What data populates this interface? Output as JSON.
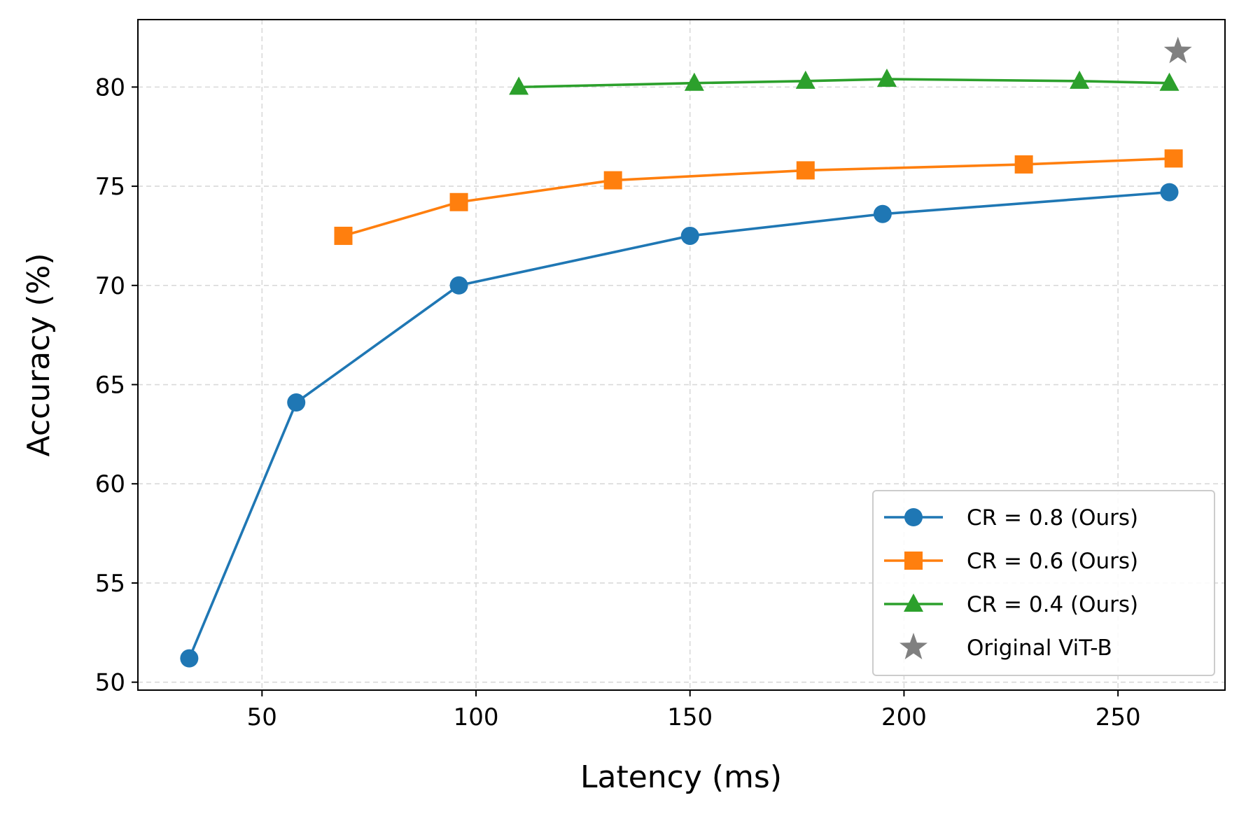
{
  "chart_data": {
    "type": "line",
    "title": "",
    "xlabel": "Latency (ms)",
    "ylabel": "Accuracy (%)",
    "xlim": [
      21,
      275
    ],
    "ylim": [
      49.6,
      83.4
    ],
    "xticks": [
      50,
      100,
      150,
      200,
      250
    ],
    "yticks": [
      50,
      55,
      60,
      65,
      70,
      75,
      80
    ],
    "grid": true,
    "legend_position": "bottom-right",
    "series": [
      {
        "name": "CR = 0.8 (Ours)",
        "color": "#1f77b4",
        "marker": "circle",
        "x": [
          33,
          58,
          96,
          150,
          195,
          262
        ],
        "y": [
          51.2,
          64.1,
          70.0,
          72.5,
          73.6,
          74.7
        ]
      },
      {
        "name": "CR = 0.6 (Ours)",
        "color": "#ff7f0e",
        "marker": "square",
        "x": [
          69,
          96,
          132,
          177,
          228,
          263
        ],
        "y": [
          72.5,
          74.2,
          75.3,
          75.8,
          76.1,
          76.4
        ]
      },
      {
        "name": "CR = 0.4 (Ours)",
        "color": "#2ca02c",
        "marker": "triangle",
        "x": [
          110,
          151,
          177,
          196,
          241,
          262
        ],
        "y": [
          80.0,
          80.2,
          80.3,
          80.4,
          80.3,
          80.2
        ]
      }
    ],
    "points": [
      {
        "name": "Original ViT-B",
        "color": "#808080",
        "marker": "star",
        "x": 264,
        "y": 81.8
      }
    ]
  }
}
